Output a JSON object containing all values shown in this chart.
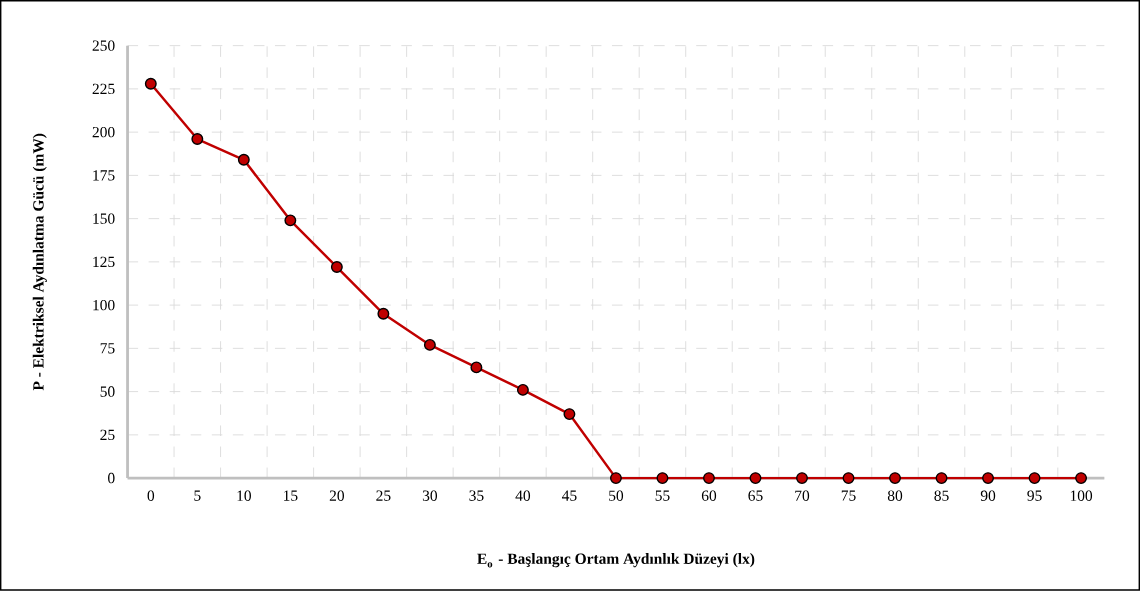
{
  "chart_data": {
    "type": "line",
    "xlabel": "E$_{o}$ - Başlangıç Ortam Aydınlık Düzeyi (lx)",
    "ylabel": "P - Elektriksel Aydınlatma Gücü (mW)",
    "categories": [
      "0",
      "5",
      "10",
      "15",
      "20",
      "25",
      "30",
      "35",
      "40",
      "45",
      "50",
      "55",
      "60",
      "65",
      "70",
      "75",
      "80",
      "85",
      "90",
      "95",
      "100"
    ],
    "series": [
      {
        "color": "#c00000",
        "values": [
          228,
          196,
          184,
          149,
          122,
          95,
          77,
          64,
          51,
          37,
          0,
          0,
          0,
          0,
          0,
          0,
          0,
          0,
          0,
          0,
          0
        ]
      }
    ],
    "ylim": [
      0,
      250
    ],
    "yticks": [
      0,
      25,
      50,
      75,
      100,
      125,
      150,
      175,
      200,
      225,
      250
    ],
    "grid": true,
    "marker": "circle",
    "line_style": "solid"
  }
}
